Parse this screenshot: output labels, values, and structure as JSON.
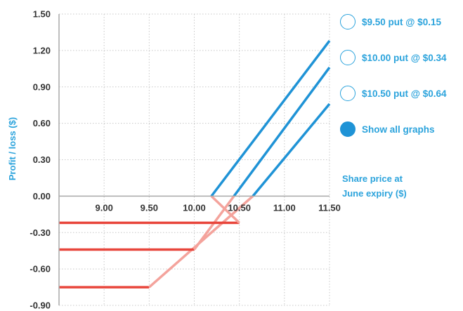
{
  "chart_data": {
    "type": "line",
    "xlabel": "Share price at June expiry ($)",
    "ylabel": "Profit / loss ($)",
    "xlim": [
      8.5,
      11.5
    ],
    "ylim": [
      -0.9,
      1.5
    ],
    "x_ticks": [
      "9.00",
      "9.50",
      "10.00",
      "10.50",
      "11.00",
      "11.50"
    ],
    "y_ticks": [
      "1.50",
      "1.20",
      "0.90",
      "0.60",
      "0.30",
      "0.00",
      "-0.30",
      "-0.60",
      "-0.90"
    ],
    "grid": true,
    "series": [
      {
        "name": "$9.50 put @ $0.15",
        "strike": 9.5,
        "premium": 0.15,
        "points": [
          [
            8.5,
            -0.75
          ],
          [
            9.5,
            -0.75
          ],
          [
            10.65,
            0.0
          ],
          [
            11.5,
            0.76
          ]
        ]
      },
      {
        "name": "$10.00 put @ $0.34",
        "strike": 10.0,
        "premium": 0.34,
        "points": [
          [
            8.5,
            -0.44
          ],
          [
            10.0,
            -0.44
          ],
          [
            10.44,
            0.0
          ],
          [
            11.5,
            1.06
          ]
        ]
      },
      {
        "name": "$10.50 put @ $0.64",
        "strike": 10.5,
        "premium": 0.64,
        "points": [
          [
            8.5,
            -0.22
          ],
          [
            10.5,
            -0.22
          ],
          [
            10.19,
            0.0
          ],
          [
            11.5,
            1.28
          ]
        ]
      }
    ]
  },
  "legend": {
    "items": [
      {
        "label": "$9.50 put @ $0.15",
        "selected": false
      },
      {
        "label": "$10.00 put @ $0.34",
        "selected": false
      },
      {
        "label": "$10.50 put @ $0.64",
        "selected": false
      },
      {
        "label": "Show all graphs",
        "selected": true
      }
    ]
  },
  "colors": {
    "loss_flat": "#e8463c",
    "loss_rising": "#f4a39c",
    "profit": "#1f93d6",
    "axis_title": "#2ba3dc",
    "grid": "#c8c8c8"
  }
}
